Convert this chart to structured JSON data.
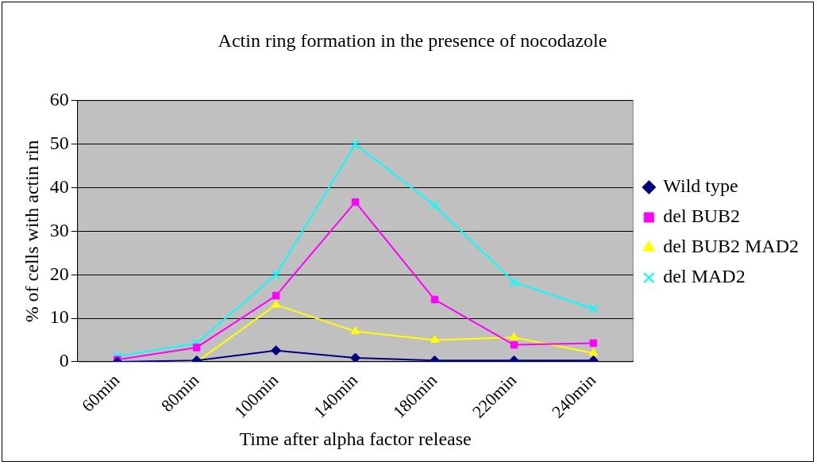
{
  "chart_data": {
    "type": "line",
    "title": "Actin ring formation in the presence of nocodazole",
    "xlabel": "Time after alpha factor release",
    "ylabel": "% of cells with actin rin",
    "categories": [
      "60min",
      "80min",
      "100min",
      "140min",
      "180min",
      "220min",
      "240min"
    ],
    "series": [
      {
        "name": "Wild type",
        "color": "#000080",
        "marker": "diamond",
        "values": [
          0,
          0.3,
          2.6,
          0.9,
          0.3,
          0.3,
          0.3
        ]
      },
      {
        "name": "del BUB2",
        "color": "#ff00ff",
        "marker": "square",
        "values": [
          0.5,
          3.3,
          15.2,
          36.7,
          14.3,
          3.9,
          4.3
        ]
      },
      {
        "name": "del BUB2 MAD2",
        "color": "#ffff00",
        "marker": "triangle",
        "values": [
          0,
          0,
          13.1,
          7,
          5,
          5.6,
          2
        ]
      },
      {
        "name": "del MAD2",
        "color": "#00ffff",
        "marker": "cross",
        "values": [
          1.3,
          4.3,
          20,
          50,
          35.9,
          18.3,
          12.2
        ]
      }
    ],
    "ylim": [
      0,
      60
    ],
    "yticks": [
      0,
      10,
      20,
      30,
      40,
      50,
      60
    ],
    "grid": "y",
    "legend": "right",
    "line_style": "solid"
  }
}
